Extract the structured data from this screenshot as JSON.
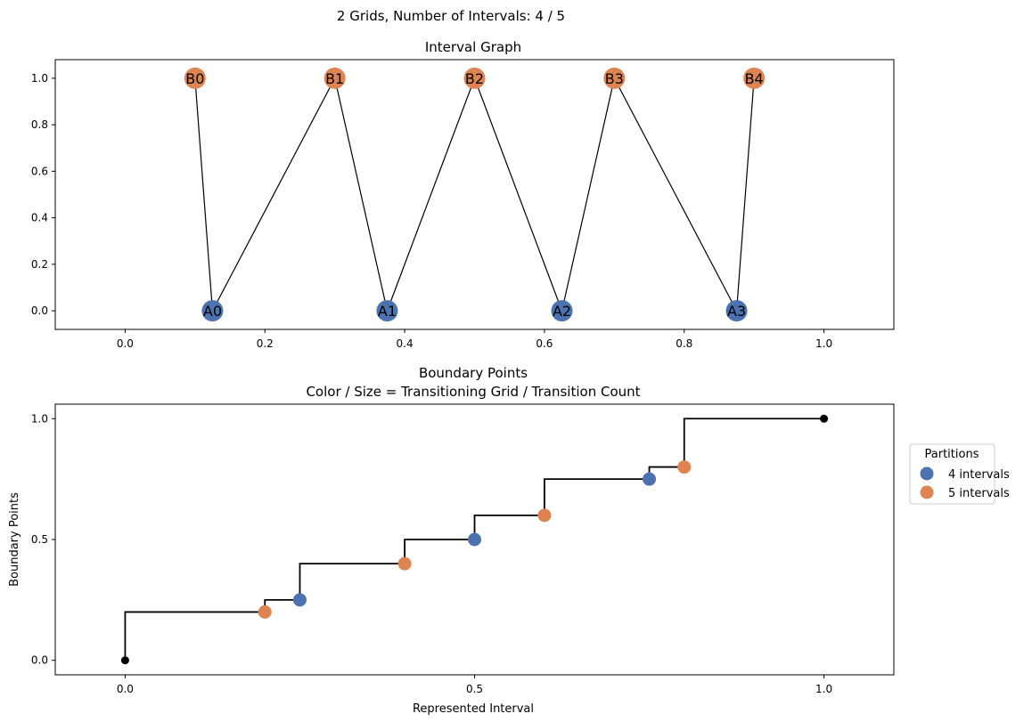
{
  "figure": {
    "suptitle": "2 Grids, Number of Intervals: 4 / 5"
  },
  "colors": {
    "grid_a": "#4c72b0",
    "grid_b": "#dd8452",
    "endpoint": "#000000",
    "edge": "#000000"
  },
  "chart_data": [
    {
      "type": "graph",
      "title": "Interval Graph",
      "xlabel": "",
      "ylabel": "",
      "xlim": [
        -0.1,
        1.1
      ],
      "ylim": [
        -0.08,
        1.08
      ],
      "xticks": [
        0.0,
        0.2,
        0.4,
        0.6,
        0.8,
        1.0
      ],
      "xtick_labels": [
        "0.0",
        "0.2",
        "0.4",
        "0.6",
        "0.8",
        "1.0"
      ],
      "yticks": [
        0.0,
        0.2,
        0.4,
        0.6,
        0.8,
        1.0
      ],
      "ytick_labels": [
        "0.0",
        "0.2",
        "0.4",
        "0.6",
        "0.8",
        "1.0"
      ],
      "nodes": [
        {
          "id": "B0",
          "label": "B0",
          "x": 0.1,
          "y": 1.0,
          "grid": "B"
        },
        {
          "id": "B1",
          "label": "B1",
          "x": 0.3,
          "y": 1.0,
          "grid": "B"
        },
        {
          "id": "B2",
          "label": "B2",
          "x": 0.5,
          "y": 1.0,
          "grid": "B"
        },
        {
          "id": "B3",
          "label": "B3",
          "x": 0.7,
          "y": 1.0,
          "grid": "B"
        },
        {
          "id": "B4",
          "label": "B4",
          "x": 0.9,
          "y": 1.0,
          "grid": "B"
        },
        {
          "id": "A0",
          "label": "A0",
          "x": 0.125,
          "y": 0.0,
          "grid": "A"
        },
        {
          "id": "A1",
          "label": "A1",
          "x": 0.375,
          "y": 0.0,
          "grid": "A"
        },
        {
          "id": "A2",
          "label": "A2",
          "x": 0.625,
          "y": 0.0,
          "grid": "A"
        },
        {
          "id": "A3",
          "label": "A3",
          "x": 0.875,
          "y": 0.0,
          "grid": "A"
        }
      ],
      "edges": [
        [
          "B0",
          "A0"
        ],
        [
          "A0",
          "B1"
        ],
        [
          "B1",
          "A1"
        ],
        [
          "A1",
          "B2"
        ],
        [
          "B2",
          "A2"
        ],
        [
          "A2",
          "B3"
        ],
        [
          "B3",
          "A3"
        ],
        [
          "A3",
          "B4"
        ]
      ]
    },
    {
      "type": "scatter",
      "title": "Boundary Points",
      "subtitle": "Color / Size = Transitioning Grid / Transition Count",
      "xlabel": "Represented Interval",
      "ylabel": "Boundary Points",
      "xlim": [
        -0.1,
        1.1
      ],
      "ylim": [
        -0.06,
        1.06
      ],
      "xticks": [
        0.0,
        0.5,
        1.0
      ],
      "xtick_labels": [
        "0.0",
        "0.5",
        "1.0"
      ],
      "yticks": [
        0.0,
        0.5,
        1.0
      ],
      "ytick_labels": [
        "0.0",
        "0.5",
        "1.0"
      ],
      "step_line": {
        "x": [
          0.0,
          0.2,
          0.25,
          0.4,
          0.5,
          0.6,
          0.75,
          0.8,
          1.0
        ],
        "y": [
          0.0,
          0.2,
          0.25,
          0.4,
          0.5,
          0.6,
          0.75,
          0.8,
          1.0
        ]
      },
      "series": [
        {
          "name": "4 intervals",
          "grid": "A",
          "x": [
            0.25,
            0.5,
            0.75
          ],
          "y": [
            0.25,
            0.5,
            0.75
          ]
        },
        {
          "name": "5 intervals",
          "grid": "B",
          "x": [
            0.2,
            0.4,
            0.6,
            0.8
          ],
          "y": [
            0.2,
            0.4,
            0.6,
            0.8
          ]
        }
      ],
      "endpoints": {
        "x": [
          0.0,
          1.0
        ],
        "y": [
          0.0,
          1.0
        ]
      },
      "legend": {
        "title": "Partitions",
        "placement": "outside-right",
        "entries": [
          "4 intervals",
          "5 intervals"
        ]
      }
    }
  ]
}
